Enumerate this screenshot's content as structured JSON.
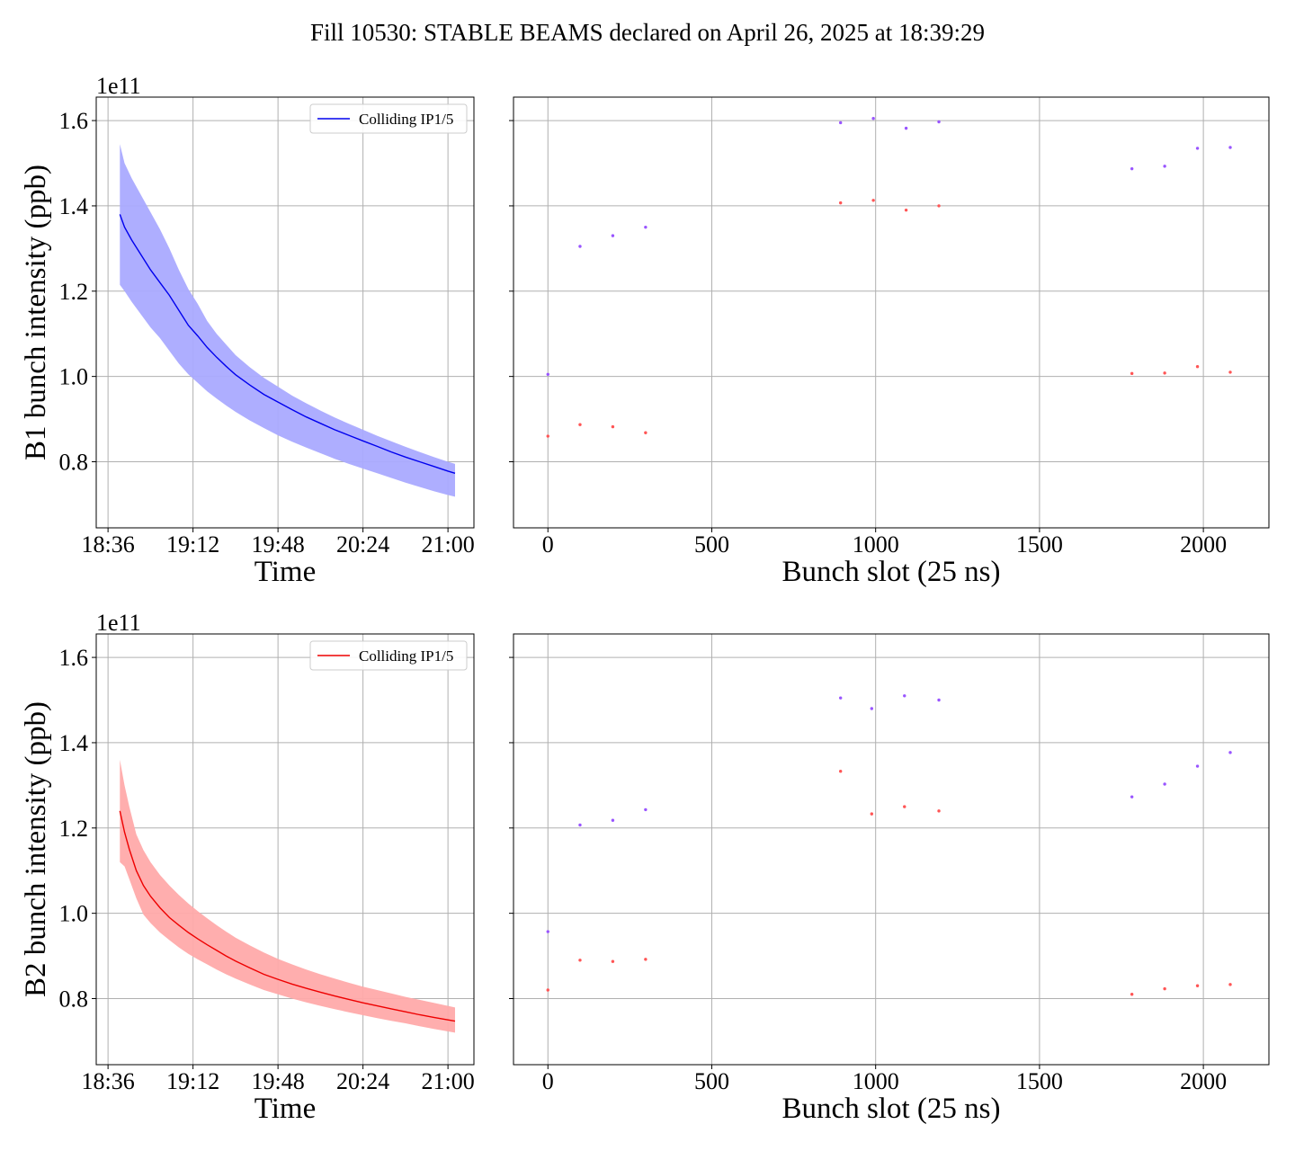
{
  "title": "Fill 10530: STABLE BEAMS declared on April 26, 2025 at 18:39:29",
  "colors": {
    "b1_line": "#0000ee",
    "b1_band": "#aaaaff",
    "b2_line": "#ee0000",
    "b2_band": "#ffaaaa",
    "point_high": "#9955ff",
    "point_low": "#ff5555",
    "grid": "#b0b0b0"
  },
  "chart_data": [
    {
      "type": "line",
      "panel": "B1 time",
      "xlabel": "Time",
      "ylabel": "B1 bunch intensity (ppb)",
      "y_multiplier": "1e11",
      "x_ticks": [
        "18:36",
        "19:12",
        "19:48",
        "20:24",
        "21:00"
      ],
      "y_ticks": [
        "0.8",
        "1.0",
        "1.2",
        "1.4",
        "1.6"
      ],
      "xlim": [
        "18:31",
        "21:11"
      ],
      "ylim": [
        0.645,
        1.655
      ],
      "legend": {
        "label": "Colliding IP1/5",
        "position": "top-right"
      },
      "grid": true,
      "series": [
        {
          "name": "Colliding IP1/5",
          "x": [
            "18:41",
            "18:43",
            "18:46",
            "18:50",
            "18:54",
            "18:58",
            "19:02",
            "19:06",
            "19:10",
            "19:14",
            "19:18",
            "19:22",
            "19:26",
            "19:30",
            "19:36",
            "19:42",
            "19:48",
            "19:54",
            "20:00",
            "20:06",
            "20:12",
            "20:18",
            "20:24",
            "20:30",
            "20:36",
            "20:42",
            "20:48",
            "20:54",
            "21:00",
            "21:03"
          ],
          "y": [
            1.38,
            1.35,
            1.32,
            1.285,
            1.25,
            1.22,
            1.19,
            1.155,
            1.12,
            1.095,
            1.068,
            1.045,
            1.024,
            1.004,
            0.98,
            0.958,
            0.94,
            0.922,
            0.905,
            0.89,
            0.875,
            0.862,
            0.849,
            0.836,
            0.823,
            0.811,
            0.8,
            0.789,
            0.778,
            0.773
          ],
          "band_upper": [
            1.545,
            1.5,
            1.465,
            1.425,
            1.385,
            1.345,
            1.3,
            1.25,
            1.205,
            1.17,
            1.13,
            1.1,
            1.075,
            1.05,
            1.022,
            0.997,
            0.976,
            0.955,
            0.937,
            0.92,
            0.904,
            0.889,
            0.875,
            0.861,
            0.848,
            0.835,
            0.823,
            0.811,
            0.8,
            0.795
          ],
          "band_lower": [
            1.215,
            1.2,
            1.175,
            1.145,
            1.115,
            1.09,
            1.06,
            1.03,
            1.005,
            0.985,
            0.965,
            0.948,
            0.932,
            0.917,
            0.897,
            0.879,
            0.862,
            0.847,
            0.833,
            0.82,
            0.807,
            0.795,
            0.784,
            0.773,
            0.762,
            0.751,
            0.741,
            0.731,
            0.722,
            0.718
          ]
        }
      ]
    },
    {
      "type": "scatter",
      "panel": "B1 slots",
      "xlabel": "Bunch slot (25 ns)",
      "x_ticks": [
        "0",
        "500",
        "1000",
        "1500",
        "2000"
      ],
      "xlim": [
        -105,
        2200
      ],
      "ylim": [
        0.645,
        1.655
      ],
      "grid": true,
      "series": [
        {
          "color": "point_high",
          "x": [
            0,
            98,
            198,
            298,
            893,
            993,
            1093,
            1193,
            1782,
            1882,
            1982,
            2082
          ],
          "y": [
            1.005,
            1.305,
            1.33,
            1.35,
            1.595,
            1.605,
            1.582,
            1.597,
            1.487,
            1.493,
            1.535,
            1.537
          ]
        },
        {
          "color": "point_low",
          "x": [
            0,
            98,
            198,
            298,
            893,
            993,
            1093,
            1193,
            1782,
            1882,
            1982,
            2082
          ],
          "y": [
            0.86,
            0.887,
            0.882,
            0.868,
            1.407,
            1.413,
            1.39,
            1.4,
            1.007,
            1.008,
            1.023,
            1.01
          ]
        }
      ]
    },
    {
      "type": "line",
      "panel": "B2 time",
      "xlabel": "Time",
      "ylabel": "B2 bunch intensity (ppb)",
      "y_multiplier": "1e11",
      "x_ticks": [
        "18:36",
        "19:12",
        "19:48",
        "20:24",
        "21:00"
      ],
      "y_ticks": [
        "0.8",
        "1.0",
        "1.2",
        "1.4",
        "1.6"
      ],
      "xlim": [
        "18:31",
        "21:11"
      ],
      "ylim": [
        0.645,
        1.655
      ],
      "legend": {
        "label": "Colliding IP1/5",
        "position": "top-right"
      },
      "grid": true,
      "series": [
        {
          "name": "Colliding IP1/5",
          "x": [
            "18:41",
            "18:43",
            "18:45",
            "18:48",
            "18:51",
            "18:54",
            "18:58",
            "19:02",
            "19:06",
            "19:10",
            "19:14",
            "19:18",
            "19:22",
            "19:26",
            "19:30",
            "19:36",
            "19:42",
            "19:48",
            "19:54",
            "20:00",
            "20:06",
            "20:12",
            "20:18",
            "20:24",
            "20:30",
            "20:36",
            "20:42",
            "20:48",
            "20:54",
            "21:00",
            "21:03"
          ],
          "y": [
            1.24,
            1.19,
            1.15,
            1.1,
            1.065,
            1.04,
            1.013,
            0.99,
            0.972,
            0.955,
            0.94,
            0.926,
            0.913,
            0.9,
            0.888,
            0.872,
            0.857,
            0.845,
            0.834,
            0.824,
            0.815,
            0.806,
            0.798,
            0.79,
            0.783,
            0.776,
            0.769,
            0.762,
            0.756,
            0.75,
            0.747
          ],
          "band_upper": [
            1.36,
            1.3,
            1.25,
            1.185,
            1.148,
            1.12,
            1.09,
            1.065,
            1.043,
            1.023,
            1.005,
            0.988,
            0.972,
            0.957,
            0.943,
            0.925,
            0.908,
            0.893,
            0.88,
            0.868,
            0.857,
            0.847,
            0.837,
            0.828,
            0.82,
            0.812,
            0.804,
            0.797,
            0.79,
            0.783,
            0.779
          ],
          "band_lower": [
            1.12,
            1.11,
            1.08,
            1.035,
            0.997,
            0.977,
            0.955,
            0.937,
            0.92,
            0.905,
            0.892,
            0.88,
            0.868,
            0.857,
            0.847,
            0.833,
            0.82,
            0.81,
            0.8,
            0.791,
            0.783,
            0.775,
            0.768,
            0.761,
            0.754,
            0.748,
            0.742,
            0.735,
            0.729,
            0.723,
            0.72
          ]
        }
      ]
    },
    {
      "type": "scatter",
      "panel": "B2 slots",
      "xlabel": "Bunch slot (25 ns)",
      "x_ticks": [
        "0",
        "500",
        "1000",
        "1500",
        "2000"
      ],
      "xlim": [
        -105,
        2200
      ],
      "ylim": [
        0.645,
        1.655
      ],
      "grid": true,
      "series": [
        {
          "color": "point_high",
          "x": [
            0,
            98,
            198,
            298,
            893,
            988,
            1088,
            1193,
            1782,
            1882,
            1982,
            2082
          ],
          "y": [
            0.957,
            1.207,
            1.218,
            1.243,
            1.505,
            1.48,
            1.51,
            1.5,
            1.273,
            1.303,
            1.345,
            1.377
          ]
        },
        {
          "color": "point_low",
          "x": [
            0,
            98,
            198,
            298,
            893,
            988,
            1088,
            1193,
            1782,
            1882,
            1982,
            2082
          ],
          "y": [
            0.82,
            0.89,
            0.887,
            0.892,
            1.333,
            1.233,
            1.25,
            1.24,
            0.81,
            0.823,
            0.83,
            0.833
          ]
        }
      ]
    }
  ]
}
